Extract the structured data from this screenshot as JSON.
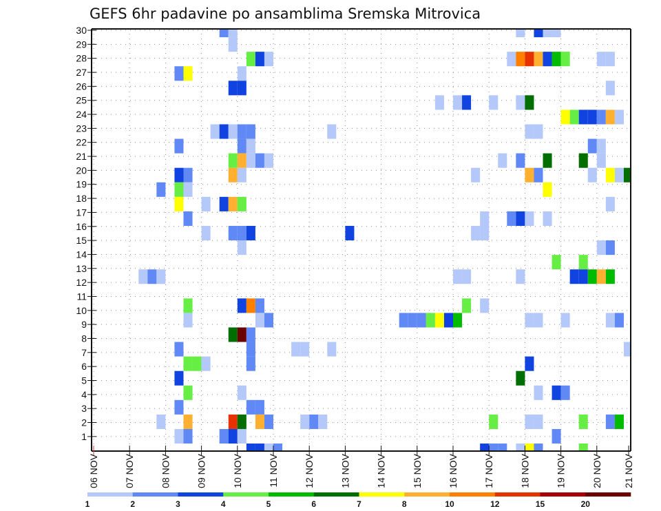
{
  "chart_data": {
    "type": "heatmap",
    "title": "GEFS 6hr padavine po ansamblima Sremska Mitrovica",
    "xlabel": "",
    "ylabel": "",
    "x_unit": "6-hour step from 06 NOV 00z",
    "x_steps": 60,
    "x_tick_labels": [
      "06 NOV",
      "07 NOV",
      "08 NOV",
      "09 NOV",
      "10 NOV",
      "11 NOV",
      "12 NOV",
      "13 NOV",
      "14 NOV",
      "15 NOV",
      "16 NOV",
      "17 NOV",
      "18 NOV",
      "19 NOV",
      "20 NOV",
      "21 NOV"
    ],
    "y_tick_labels": [
      "1",
      "2",
      "3",
      "4",
      "5",
      "6",
      "7",
      "8",
      "9",
      "10",
      "11",
      "12",
      "13",
      "14",
      "15",
      "16",
      "17",
      "18",
      "19",
      "20",
      "21",
      "22",
      "23",
      "24",
      "25",
      "26",
      "27",
      "28",
      "29",
      "30"
    ],
    "ylim": [
      1,
      30
    ],
    "grid": true,
    "legend": {
      "placement": "bottom",
      "levels": [
        "1",
        "2",
        "3",
        "4",
        "5",
        "6",
        "7",
        "8",
        "10",
        "12",
        "15",
        "20"
      ],
      "colors": [
        "#b4c8fa",
        "#6189f5",
        "#1143e0",
        "#66ee44",
        "#00bb00",
        "#006e00",
        "#ffff00",
        "#ffb030",
        "#ff7f00",
        "#e63200",
        "#a80000",
        "#6a0000"
      ]
    },
    "cells_format": [
      "member",
      "step",
      "bin"
    ],
    "cells": [
      [
        30,
        14,
        2
      ],
      [
        30,
        15,
        1
      ],
      [
        30,
        47,
        1
      ],
      [
        30,
        49,
        3
      ],
      [
        30,
        50,
        1
      ],
      [
        30,
        51,
        1
      ],
      [
        29,
        15,
        1
      ],
      [
        28,
        17,
        4
      ],
      [
        28,
        18,
        3
      ],
      [
        28,
        19,
        1
      ],
      [
        28,
        46,
        1
      ],
      [
        28,
        47,
        9
      ],
      [
        28,
        48,
        10
      ],
      [
        28,
        49,
        8
      ],
      [
        28,
        50,
        3
      ],
      [
        28,
        51,
        5
      ],
      [
        28,
        52,
        4
      ],
      [
        28,
        56,
        1
      ],
      [
        28,
        57,
        1
      ],
      [
        27,
        9,
        2
      ],
      [
        27,
        10,
        7
      ],
      [
        27,
        16,
        1
      ],
      [
        26,
        15,
        3
      ],
      [
        26,
        16,
        3
      ],
      [
        26,
        57,
        1
      ],
      [
        25,
        38,
        1
      ],
      [
        25,
        40,
        1
      ],
      [
        25,
        41,
        3
      ],
      [
        25,
        44,
        1
      ],
      [
        25,
        47,
        1
      ],
      [
        25,
        48,
        6
      ],
      [
        24,
        52,
        7
      ],
      [
        24,
        53,
        4
      ],
      [
        24,
        54,
        3
      ],
      [
        24,
        55,
        3
      ],
      [
        24,
        56,
        2
      ],
      [
        24,
        57,
        8
      ],
      [
        24,
        58,
        1
      ],
      [
        23,
        13,
        1
      ],
      [
        23,
        14,
        3
      ],
      [
        23,
        15,
        1
      ],
      [
        23,
        16,
        2
      ],
      [
        23,
        17,
        2
      ],
      [
        23,
        26,
        1
      ],
      [
        23,
        48,
        1
      ],
      [
        23,
        49,
        1
      ],
      [
        22,
        9,
        2
      ],
      [
        22,
        16,
        2
      ],
      [
        22,
        17,
        1
      ],
      [
        22,
        55,
        2
      ],
      [
        22,
        56,
        1
      ],
      [
        21,
        15,
        4
      ],
      [
        21,
        16,
        8
      ],
      [
        21,
        17,
        1
      ],
      [
        21,
        18,
        2
      ],
      [
        21,
        19,
        1
      ],
      [
        21,
        45,
        1
      ],
      [
        21,
        47,
        2
      ],
      [
        21,
        50,
        6
      ],
      [
        21,
        54,
        6
      ],
      [
        21,
        56,
        1
      ],
      [
        20,
        9,
        3
      ],
      [
        20,
        10,
        2
      ],
      [
        20,
        15,
        8
      ],
      [
        20,
        16,
        1
      ],
      [
        20,
        42,
        1
      ],
      [
        20,
        48,
        8
      ],
      [
        20,
        49,
        2
      ],
      [
        20,
        55,
        1
      ],
      [
        20,
        57,
        7
      ],
      [
        20,
        58,
        1
      ],
      [
        20,
        59,
        6
      ],
      [
        19,
        7,
        2
      ],
      [
        19,
        9,
        4
      ],
      [
        19,
        10,
        1
      ],
      [
        19,
        50,
        7
      ],
      [
        18,
        9,
        7
      ],
      [
        18,
        12,
        1
      ],
      [
        18,
        14,
        3
      ],
      [
        18,
        15,
        8
      ],
      [
        18,
        16,
        4
      ],
      [
        18,
        57,
        1
      ],
      [
        17,
        10,
        2
      ],
      [
        17,
        43,
        1
      ],
      [
        17,
        46,
        2
      ],
      [
        17,
        47,
        3
      ],
      [
        17,
        48,
        1
      ],
      [
        17,
        50,
        1
      ],
      [
        16,
        12,
        1
      ],
      [
        16,
        15,
        2
      ],
      [
        16,
        16,
        2
      ],
      [
        16,
        17,
        3
      ],
      [
        16,
        28,
        3
      ],
      [
        16,
        42,
        1
      ],
      [
        16,
        43,
        1
      ],
      [
        15,
        16,
        1
      ],
      [
        15,
        56,
        1
      ],
      [
        15,
        57,
        2
      ],
      [
        14,
        51,
        4
      ],
      [
        14,
        54,
        4
      ],
      [
        13,
        5,
        1
      ],
      [
        13,
        6,
        2
      ],
      [
        13,
        7,
        1
      ],
      [
        13,
        40,
        1
      ],
      [
        13,
        41,
        1
      ],
      [
        13,
        47,
        1
      ],
      [
        13,
        53,
        3
      ],
      [
        13,
        54,
        3
      ],
      [
        13,
        55,
        5
      ],
      [
        13,
        56,
        8
      ],
      [
        13,
        57,
        5
      ],
      [
        11,
        10,
        4
      ],
      [
        11,
        16,
        3
      ],
      [
        11,
        17,
        9
      ],
      [
        11,
        18,
        2
      ],
      [
        11,
        41,
        4
      ],
      [
        11,
        43,
        1
      ],
      [
        10,
        10,
        1
      ],
      [
        10,
        18,
        1
      ],
      [
        10,
        19,
        2
      ],
      [
        10,
        34,
        2
      ],
      [
        10,
        35,
        2
      ],
      [
        10,
        36,
        2
      ],
      [
        10,
        37,
        4
      ],
      [
        10,
        38,
        7
      ],
      [
        10,
        39,
        3
      ],
      [
        10,
        40,
        5
      ],
      [
        10,
        48,
        1
      ],
      [
        10,
        49,
        1
      ],
      [
        10,
        52,
        1
      ],
      [
        10,
        57,
        1
      ],
      [
        10,
        58,
        2
      ],
      [
        9,
        15,
        6
      ],
      [
        9,
        16,
        12
      ],
      [
        9,
        17,
        2
      ],
      [
        8,
        9,
        2
      ],
      [
        8,
        17,
        2
      ],
      [
        8,
        22,
        1
      ],
      [
        8,
        23,
        1
      ],
      [
        8,
        26,
        1
      ],
      [
        8,
        59,
        1
      ],
      [
        7,
        10,
        4
      ],
      [
        7,
        11,
        4
      ],
      [
        7,
        12,
        1
      ],
      [
        7,
        17,
        2
      ],
      [
        7,
        48,
        3
      ],
      [
        6,
        9,
        3
      ],
      [
        6,
        47,
        6
      ],
      [
        5,
        10,
        4
      ],
      [
        5,
        16,
        1
      ],
      [
        5,
        49,
        1
      ],
      [
        5,
        51,
        3
      ],
      [
        5,
        52,
        2
      ],
      [
        4,
        9,
        2
      ],
      [
        4,
        17,
        2
      ],
      [
        4,
        18,
        2
      ],
      [
        3,
        7,
        1
      ],
      [
        3,
        10,
        8
      ],
      [
        3,
        15,
        10
      ],
      [
        3,
        16,
        6
      ],
      [
        3,
        18,
        8
      ],
      [
        3,
        19,
        2
      ],
      [
        3,
        23,
        1
      ],
      [
        3,
        24,
        2
      ],
      [
        3,
        25,
        1
      ],
      [
        3,
        44,
        4
      ],
      [
        3,
        48,
        1
      ],
      [
        3,
        49,
        1
      ],
      [
        3,
        54,
        4
      ],
      [
        3,
        57,
        2
      ],
      [
        3,
        58,
        5
      ],
      [
        2,
        9,
        1
      ],
      [
        2,
        10,
        2
      ],
      [
        2,
        14,
        2
      ],
      [
        2,
        15,
        3
      ],
      [
        2,
        16,
        1
      ],
      [
        2,
        51,
        2
      ],
      [
        1,
        17,
        3
      ],
      [
        1,
        18,
        3
      ],
      [
        1,
        19,
        1
      ],
      [
        1,
        20,
        2
      ],
      [
        1,
        43,
        3
      ],
      [
        1,
        44,
        2
      ],
      [
        1,
        45,
        2
      ],
      [
        1,
        47,
        1
      ],
      [
        1,
        48,
        7
      ],
      [
        1,
        49,
        2
      ],
      [
        1,
        54,
        4
      ]
    ]
  }
}
